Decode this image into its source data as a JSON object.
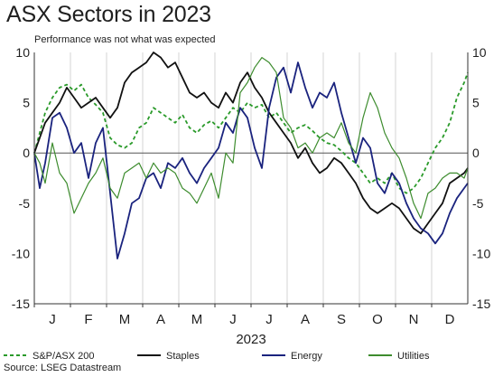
{
  "header": {
    "title": "ASX Sectors in 2023",
    "subtitle": "Performance was not what was expected"
  },
  "footer": {
    "source": "Source: LSEG Datastream"
  },
  "chart_data": {
    "type": "line",
    "title": "ASX Sectors in 2023",
    "subtitle": "Performance was not what was expected",
    "xlabel": "2023",
    "ylabel": "",
    "ylim": [
      -15,
      10
    ],
    "yticks": [
      -15,
      -10,
      -5,
      0,
      5,
      10
    ],
    "ytick_labels": [
      "-15",
      "-10",
      "-5",
      "0",
      "5",
      "10"
    ],
    "secondary_y_axis": true,
    "xlim": [
      0,
      12
    ],
    "month_labels": [
      "J",
      "F",
      "M",
      "A",
      "M",
      "J",
      "J",
      "A",
      "S",
      "O",
      "N",
      "D"
    ],
    "grid": "vertical month gridlines",
    "zero_line": true,
    "legend_placement": "bottom",
    "x_units": "months since start of 2023",
    "series": [
      {
        "name": "S&P/ASX 200",
        "color": "#2a9a2a",
        "style": "dashed",
        "x": [
          0.0,
          0.15,
          0.3,
          0.5,
          0.7,
          0.9,
          1.1,
          1.3,
          1.5,
          1.7,
          1.9,
          2.1,
          2.3,
          2.5,
          2.7,
          2.9,
          3.1,
          3.3,
          3.5,
          3.7,
          3.9,
          4.1,
          4.3,
          4.5,
          4.7,
          4.9,
          5.1,
          5.3,
          5.5,
          5.7,
          5.9,
          6.1,
          6.3,
          6.5,
          6.7,
          6.9,
          7.1,
          7.3,
          7.5,
          7.7,
          7.9,
          8.1,
          8.3,
          8.5,
          8.7,
          8.9,
          9.1,
          9.3,
          9.5,
          9.7,
          9.9,
          10.1,
          10.3,
          10.5,
          10.7,
          10.9,
          11.1,
          11.3,
          11.5,
          11.7,
          11.9,
          12.0
        ],
        "values": [
          0.0,
          2.0,
          4.0,
          5.5,
          6.5,
          6.8,
          6.2,
          6.8,
          5.5,
          4.8,
          4.0,
          1.5,
          0.8,
          0.5,
          1.0,
          2.5,
          3.0,
          4.5,
          4.0,
          3.5,
          3.0,
          3.8,
          2.5,
          2.0,
          2.8,
          3.2,
          2.5,
          3.5,
          4.5,
          4.0,
          5.0,
          4.5,
          4.8,
          3.5,
          4.0,
          3.0,
          2.0,
          2.5,
          2.8,
          2.2,
          1.5,
          1.0,
          0.8,
          0.2,
          -0.5,
          -1.0,
          -2.0,
          -3.0,
          -2.5,
          -3.0,
          -2.0,
          -3.5,
          -4.0,
          -3.5,
          -2.5,
          -1.0,
          0.5,
          1.5,
          3.0,
          5.5,
          7.0,
          8.0
        ]
      },
      {
        "name": "Staples",
        "color": "#111111",
        "style": "solid",
        "x": [
          0.0,
          0.15,
          0.3,
          0.5,
          0.7,
          0.9,
          1.1,
          1.3,
          1.5,
          1.7,
          1.9,
          2.1,
          2.3,
          2.5,
          2.7,
          2.9,
          3.1,
          3.3,
          3.5,
          3.7,
          3.9,
          4.1,
          4.3,
          4.5,
          4.7,
          4.9,
          5.1,
          5.3,
          5.5,
          5.7,
          5.9,
          6.1,
          6.3,
          6.5,
          6.7,
          6.9,
          7.1,
          7.3,
          7.5,
          7.7,
          7.9,
          8.1,
          8.3,
          8.5,
          8.7,
          8.9,
          9.1,
          9.3,
          9.5,
          9.7,
          9.9,
          10.1,
          10.3,
          10.5,
          10.7,
          10.9,
          11.1,
          11.3,
          11.5,
          11.7,
          11.9,
          12.0
        ],
        "values": [
          0.0,
          1.5,
          3.0,
          4.0,
          5.0,
          6.5,
          5.5,
          4.5,
          5.0,
          5.5,
          4.5,
          3.5,
          4.5,
          7.0,
          8.0,
          8.5,
          9.0,
          10.0,
          9.5,
          8.5,
          9.0,
          7.5,
          6.0,
          5.5,
          6.0,
          5.0,
          4.5,
          6.0,
          5.0,
          7.0,
          8.0,
          6.5,
          5.5,
          4.0,
          3.0,
          2.0,
          1.0,
          -0.5,
          0.5,
          -1.0,
          -2.0,
          -1.5,
          -0.5,
          -1.0,
          -2.0,
          -3.0,
          -4.5,
          -5.5,
          -6.0,
          -5.5,
          -5.0,
          -5.5,
          -6.5,
          -7.5,
          -8.0,
          -7.0,
          -6.0,
          -5.0,
          -3.0,
          -2.5,
          -2.0,
          -1.5
        ]
      },
      {
        "name": "Energy",
        "color": "#1a237e",
        "style": "solid",
        "x": [
          0.0,
          0.15,
          0.3,
          0.5,
          0.7,
          0.9,
          1.1,
          1.3,
          1.5,
          1.7,
          1.9,
          2.1,
          2.3,
          2.5,
          2.7,
          2.9,
          3.1,
          3.3,
          3.5,
          3.7,
          3.9,
          4.1,
          4.3,
          4.5,
          4.7,
          4.9,
          5.1,
          5.3,
          5.5,
          5.7,
          5.9,
          6.1,
          6.3,
          6.5,
          6.7,
          6.9,
          7.1,
          7.3,
          7.5,
          7.7,
          7.9,
          8.1,
          8.3,
          8.5,
          8.7,
          8.9,
          9.1,
          9.3,
          9.5,
          9.7,
          9.9,
          10.1,
          10.3,
          10.5,
          10.7,
          10.9,
          11.1,
          11.3,
          11.5,
          11.7,
          11.9,
          12.0
        ],
        "values": [
          0.0,
          -3.5,
          -1.0,
          3.5,
          4.0,
          2.5,
          0.0,
          1.0,
          -2.5,
          1.0,
          2.5,
          -4.0,
          -10.5,
          -8.0,
          -5.0,
          -4.5,
          -2.5,
          -2.0,
          -3.5,
          -1.0,
          -1.5,
          -0.5,
          -2.0,
          -3.0,
          -1.5,
          -0.5,
          0.5,
          3.0,
          2.0,
          4.5,
          3.5,
          0.5,
          -1.5,
          4.5,
          7.5,
          8.5,
          6.0,
          9.0,
          6.5,
          4.5,
          6.0,
          5.5,
          7.0,
          4.0,
          1.5,
          -1.0,
          1.5,
          0.5,
          -3.0,
          -4.0,
          -2.0,
          -3.0,
          -5.0,
          -6.5,
          -7.5,
          -8.0,
          -9.0,
          -8.0,
          -6.0,
          -4.5,
          -3.5,
          -3.0
        ]
      },
      {
        "name": "Utilities",
        "color": "#3d8c2e",
        "style": "solid",
        "x": [
          0.0,
          0.15,
          0.3,
          0.5,
          0.7,
          0.9,
          1.1,
          1.3,
          1.5,
          1.7,
          1.9,
          2.1,
          2.3,
          2.5,
          2.7,
          2.9,
          3.1,
          3.3,
          3.5,
          3.7,
          3.9,
          4.1,
          4.3,
          4.5,
          4.7,
          4.9,
          5.1,
          5.3,
          5.5,
          5.7,
          5.9,
          6.1,
          6.3,
          6.5,
          6.7,
          6.9,
          7.1,
          7.3,
          7.5,
          7.7,
          7.9,
          8.1,
          8.3,
          8.5,
          8.7,
          8.9,
          9.1,
          9.3,
          9.5,
          9.7,
          9.9,
          10.1,
          10.3,
          10.5,
          10.7,
          10.9,
          11.1,
          11.3,
          11.5,
          11.7,
          11.9,
          12.0
        ],
        "values": [
          0.0,
          -1.0,
          -3.0,
          1.0,
          -2.0,
          -3.0,
          -6.0,
          -4.5,
          -3.0,
          -2.0,
          -0.5,
          -3.5,
          -4.5,
          -2.0,
          -1.5,
          -1.0,
          -2.5,
          -1.0,
          -2.0,
          -1.5,
          -2.0,
          -3.5,
          -4.0,
          -5.0,
          -3.5,
          -2.0,
          -4.5,
          0.0,
          -1.0,
          6.0,
          7.0,
          8.5,
          9.5,
          9.0,
          8.0,
          3.5,
          2.5,
          0.5,
          1.0,
          0.0,
          1.5,
          2.0,
          1.5,
          3.0,
          1.0,
          0.0,
          3.5,
          6.0,
          4.5,
          2.0,
          0.5,
          -0.5,
          -2.5,
          -5.0,
          -6.5,
          -4.0,
          -3.5,
          -2.5,
          -2.0,
          -2.0,
          -2.5,
          -1.5
        ]
      }
    ]
  }
}
